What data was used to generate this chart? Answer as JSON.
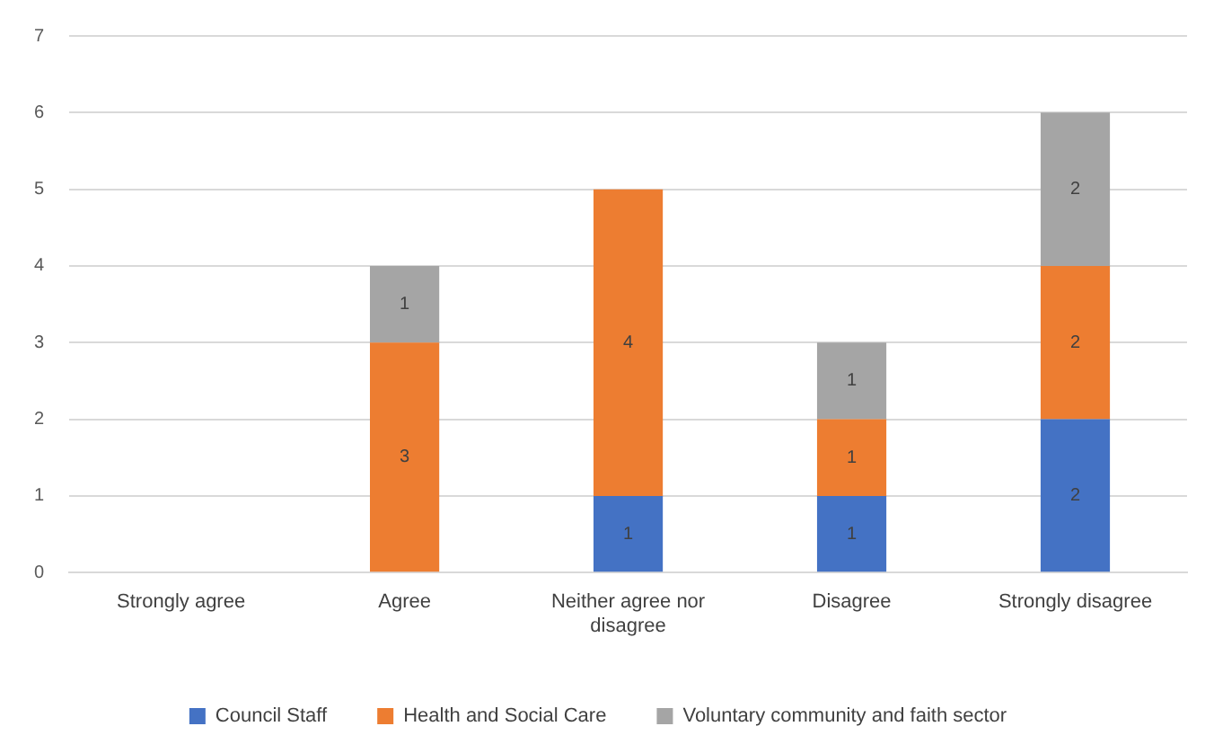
{
  "chart_data": {
    "type": "bar",
    "stacked": true,
    "categories": [
      "Strongly agree",
      "Agree",
      "Neither agree nor disagree",
      "Disagree",
      "Strongly disagree"
    ],
    "series": [
      {
        "name": "Council Staff",
        "color": "#4472c4",
        "values": [
          null,
          null,
          1,
          1,
          2
        ]
      },
      {
        "name": "Health and Social Care",
        "color": "#ed7d31",
        "values": [
          null,
          3,
          4,
          1,
          2
        ]
      },
      {
        "name": "Voluntary community and faith sector",
        "color": "#a5a5a5",
        "values": [
          null,
          1,
          null,
          1,
          2
        ]
      }
    ],
    "ylim": [
      0,
      7
    ],
    "yticks": [
      0,
      1,
      2,
      3,
      4,
      5,
      6,
      7
    ],
    "grid": "y",
    "legend": "bottom",
    "data_labels": true
  }
}
